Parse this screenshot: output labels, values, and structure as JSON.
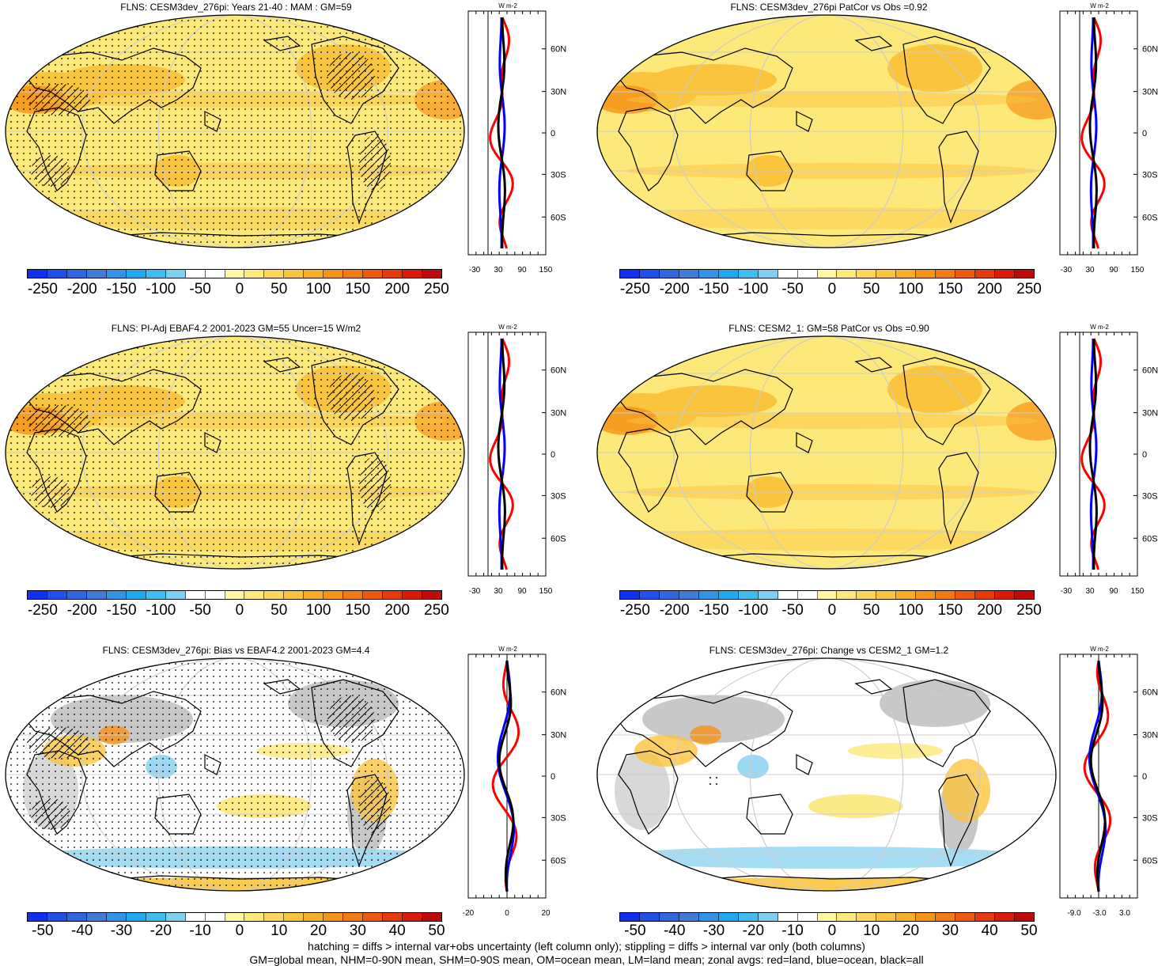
{
  "panels": [
    {
      "title": "FLNS: CESM3dev_276pi: Years 21-40 : MAM : GM=59",
      "kind": "abs",
      "hatch": true
    },
    {
      "title": "FLNS: CESM3dev_276pi PatCor vs Obs =0.92",
      "kind": "abs",
      "hatch": false
    },
    {
      "title": "FLNS: PI-Adj EBAF4.2 2001-2023 GM=55 Uncer=15 W/m2",
      "kind": "abs",
      "hatch": true
    },
    {
      "title": "FLNS: CESM2_1: GM=58 PatCor vs Obs =0.90",
      "kind": "abs",
      "hatch": false
    },
    {
      "title": "FLNS: CESM3dev_276pi: Bias vs EBAF4.2 2001-2023 GM=4.4",
      "kind": "diff",
      "hatch": true
    },
    {
      "title": "FLNS: CESM3dev_276pi: Change vs CESM2_1 GM=1.2",
      "kind": "diff",
      "hatch": false
    }
  ],
  "colorbar_abs": {
    "labels": [
      "-250",
      "-200",
      "-150",
      "-100",
      "-50",
      "0",
      "50",
      "100",
      "150",
      "200",
      "250"
    ],
    "colors": [
      "#1030f0",
      "#2050e8",
      "#3066e0",
      "#3f7cd8",
      "#2f94e6",
      "#1eaaf0",
      "#3fbcf0",
      "#7fd0f0",
      "#ffffff",
      "#ffffff",
      "#fff7a0",
      "#fde87a",
      "#fcd65a",
      "#fbc43d",
      "#f9ae23",
      "#f69418",
      "#f27a12",
      "#ed5a0e",
      "#e63a0c",
      "#dc1a0a",
      "#c00a0a"
    ]
  },
  "colorbar_diff": {
    "labels": [
      "-50",
      "-40",
      "-30",
      "-20",
      "-10",
      "0",
      "10",
      "20",
      "30",
      "40",
      "50"
    ],
    "colors": [
      "#1030f0",
      "#2050e8",
      "#3066e0",
      "#3f7cd8",
      "#2f94e6",
      "#1eaaf0",
      "#3fbcf0",
      "#7fd0f0",
      "#ffffff",
      "#ffffff",
      "#fff7a0",
      "#fde87a",
      "#fcd65a",
      "#fbc43d",
      "#f9ae23",
      "#f69418",
      "#f27a12",
      "#ed5a0e",
      "#e63a0c",
      "#dc1a0a",
      "#c00a0a"
    ]
  },
  "zonal": {
    "units": "W m-2",
    "lat_labels": [
      "60N",
      "30N",
      "0",
      "30S",
      "60S"
    ],
    "abs_ticks": [
      "-30",
      "30",
      "90",
      "150"
    ],
    "diff_left_ticks": [
      "-20",
      "0",
      "20"
    ],
    "diff_right_ticks": [
      "-9.0",
      "-3.0",
      "3.0"
    ],
    "series_colors": {
      "land": "#ff0000",
      "ocean": "#0000ff",
      "all": "#000000"
    }
  },
  "colors": {
    "map_base_abs": "#fde87a",
    "map_warm": "#fbc43d",
    "map_hot": "#f69418",
    "map_land_gray": "#c8c8c8",
    "map_diff_base": "#ffffff",
    "map_diff_blue": "#9ad8f3",
    "coast": "#000000",
    "grid": "#cccccc"
  },
  "footer": {
    "line1": "hatching = diffs > internal var+obs uncertainty (left column only); stippling = diffs > internal var only (both columns)",
    "line2": "GM=global mean, NHM=0-90N mean, SHM=0-90S mean, OM=ocean mean, LM=land mean; zonal avgs: red=land, blue=ocean, black=all"
  }
}
